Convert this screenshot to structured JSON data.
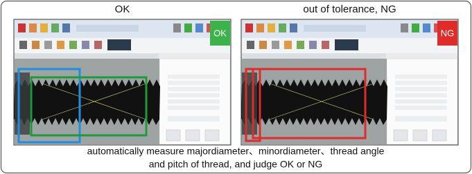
{
  "panels": [
    {
      "label": "OK",
      "badge": "OK"
    },
    {
      "label": "out of tolerance, NG",
      "badge": "NG"
    }
  ],
  "caption": [
    "automatically measure majordiameter、minordiameter、thread angle",
    "and pitch of thread, and judge OK or NG"
  ]
}
